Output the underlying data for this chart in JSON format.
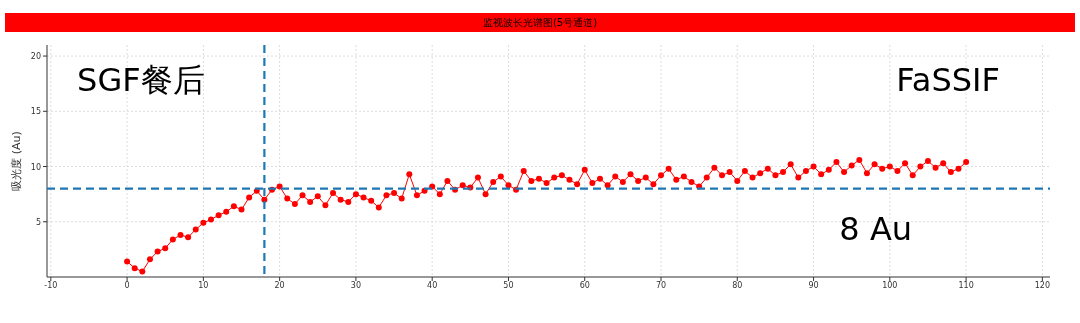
{
  "chart_data": {
    "type": "line",
    "title": "监视波长光谱图(5号通道)",
    "ylabel": "吸光度 (Au)",
    "x": [
      0,
      1,
      2,
      3,
      4,
      5,
      6,
      7,
      8,
      9,
      10,
      11,
      12,
      13,
      14,
      15,
      16,
      17,
      18,
      19,
      20,
      21,
      22,
      23,
      24,
      25,
      26,
      27,
      28,
      29,
      30,
      31,
      32,
      33,
      34,
      35,
      36,
      37,
      38,
      39,
      40,
      41,
      42,
      43,
      44,
      45,
      46,
      47,
      48,
      49,
      50,
      51,
      52,
      53,
      54,
      55,
      56,
      57,
      58,
      59,
      60,
      61,
      62,
      63,
      64,
      65,
      66,
      67,
      68,
      69,
      70,
      71,
      72,
      73,
      74,
      75,
      76,
      77,
      78,
      79,
      80,
      81,
      82,
      83,
      84,
      85,
      86,
      87,
      88,
      89,
      90,
      91,
      92,
      93,
      94,
      95,
      96,
      97,
      98,
      99,
      100,
      101,
      102,
      103,
      104,
      105,
      106,
      107,
      108,
      109,
      110
    ],
    "series": [
      {
        "color": "#ff0000",
        "values": [
          1.4,
          0.8,
          0.5,
          1.6,
          2.3,
          2.6,
          3.4,
          3.8,
          3.6,
          4.3,
          4.9,
          5.2,
          5.6,
          5.9,
          6.4,
          6.1,
          7.2,
          7.8,
          7.0,
          7.9,
          8.2,
          7.1,
          6.6,
          7.4,
          6.8,
          7.3,
          6.5,
          7.6,
          7.0,
          6.8,
          7.5,
          7.2,
          6.9,
          6.3,
          7.4,
          7.6,
          7.1,
          9.3,
          7.4,
          7.8,
          8.2,
          7.5,
          8.7,
          7.9,
          8.3,
          8.1,
          9.0,
          7.5,
          8.6,
          9.1,
          8.3,
          7.9,
          9.6,
          8.7,
          8.9,
          8.5,
          9.0,
          9.2,
          8.8,
          8.4,
          9.7,
          8.5,
          8.9,
          8.3,
          9.1,
          8.6,
          9.3,
          8.7,
          9.0,
          8.4,
          9.2,
          9.8,
          8.8,
          9.1,
          8.6,
          8.2,
          9.0,
          9.9,
          9.2,
          9.5,
          8.7,
          9.6,
          9.0,
          9.4,
          9.8,
          9.2,
          9.5,
          10.2,
          9.0,
          9.6,
          10.0,
          9.3,
          9.7,
          10.4,
          9.5,
          10.1,
          10.6,
          9.4,
          10.2,
          9.8,
          10.0,
          9.6,
          10.3,
          9.2,
          10.0,
          10.5,
          9.9,
          10.3,
          9.5,
          9.8,
          10.4
        ]
      }
    ],
    "xlim": [
      -10.5,
      121
    ],
    "ylim": [
      0,
      21
    ],
    "xticks": [
      -10,
      0,
      10,
      20,
      30,
      40,
      50,
      60,
      70,
      80,
      90,
      100,
      110,
      120
    ],
    "yticks": [
      5,
      10,
      15,
      20
    ],
    "grid": true,
    "marker": "circle",
    "line_style": "solid",
    "ref_lines": [
      {
        "axis": "y",
        "value": 8,
        "color": "#1f77b4",
        "line_style": "dashed"
      },
      {
        "axis": "x",
        "value": 18,
        "color": "#1f77b4",
        "line_style": "dashed"
      }
    ],
    "annotations": [
      "SGF餐后",
      "FaSSIF",
      "8 Au"
    ]
  }
}
